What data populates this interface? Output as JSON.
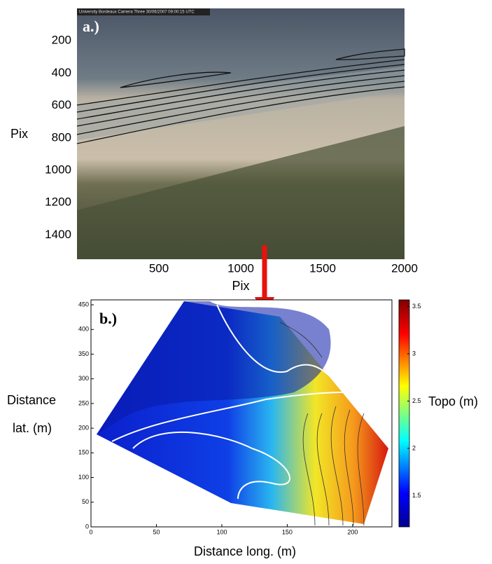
{
  "chart_data": [
    {
      "type": "image",
      "panel_label": "a.)",
      "caption": "University Bordeaux Camera Three 30/06/2007 09:00:15 UTC",
      "xlabel": "Pix",
      "ylabel": "Pix",
      "xlim": [
        0,
        2000
      ],
      "xticks": [
        500,
        1000,
        1500,
        2000
      ],
      "ylim": [
        0,
        1550
      ],
      "yticks": [
        200,
        400,
        600,
        800,
        1000,
        1200,
        1400
      ],
      "y_inverted": true
    },
    {
      "type": "heatmap",
      "panel_label": "b.)",
      "xlabel": "Distance long. (m)",
      "ylabel": [
        "Distance",
        "lat. (m)"
      ],
      "xlim": [
        0,
        230
      ],
      "xticks": [
        0,
        50,
        100,
        150,
        200
      ],
      "ylim": [
        0,
        460
      ],
      "yticks": [
        0,
        50,
        100,
        150,
        200,
        250,
        300,
        350,
        400,
        450
      ],
      "y_inverted": false,
      "colorbar_label": "Topo (m)",
      "clim": [
        1.17,
        3.57
      ],
      "cticks": [
        1.5,
        2,
        2.5,
        3,
        3.5
      ]
    }
  ]
}
